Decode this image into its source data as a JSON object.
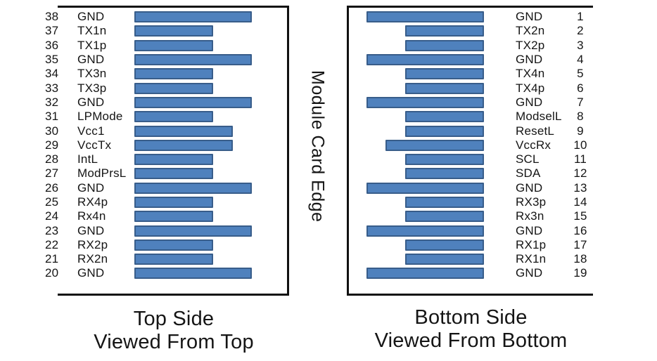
{
  "center_label": "Module Card Edge",
  "colors": {
    "bar_fill": "#4F81BD",
    "bar_border": "#385D8A",
    "box_border": "#111111",
    "text": "#151515"
  },
  "left_panel": {
    "caption": [
      "Top Side",
      "Viewed From Top"
    ],
    "pins": [
      {
        "num": "38",
        "label": "GND",
        "type": "gnd"
      },
      {
        "num": "37",
        "label": "TX1n",
        "type": "sig"
      },
      {
        "num": "36",
        "label": "TX1p",
        "type": "sig"
      },
      {
        "num": "35",
        "label": "GND",
        "type": "gnd"
      },
      {
        "num": "34",
        "label": "TX3n",
        "type": "sig"
      },
      {
        "num": "33",
        "label": "TX3p",
        "type": "sig"
      },
      {
        "num": "32",
        "label": "GND",
        "type": "gnd"
      },
      {
        "num": "31",
        "label": "LPMode",
        "type": "sig"
      },
      {
        "num": "30",
        "label": "Vcc1",
        "type": "vcc"
      },
      {
        "num": "29",
        "label": "VccTx",
        "type": "vcc"
      },
      {
        "num": "28",
        "label": "IntL",
        "type": "sig"
      },
      {
        "num": "27",
        "label": "ModPrsL",
        "type": "sig"
      },
      {
        "num": "26",
        "label": "GND",
        "type": "gnd"
      },
      {
        "num": "25",
        "label": "RX4p",
        "type": "sig"
      },
      {
        "num": "24",
        "label": "Rx4n",
        "type": "sig"
      },
      {
        "num": "23",
        "label": "GND",
        "type": "gnd"
      },
      {
        "num": "22",
        "label": "RX2p",
        "type": "sig"
      },
      {
        "num": "21",
        "label": "RX2n",
        "type": "sig"
      },
      {
        "num": "20",
        "label": "GND",
        "type": "gnd"
      }
    ]
  },
  "right_panel": {
    "caption": [
      "Bottom Side",
      "Viewed From Bottom"
    ],
    "pins": [
      {
        "num": "1",
        "label": "GND",
        "type": "gnd"
      },
      {
        "num": "2",
        "label": "TX2n",
        "type": "sig"
      },
      {
        "num": "3",
        "label": "TX2p",
        "type": "sig"
      },
      {
        "num": "4",
        "label": "GND",
        "type": "gnd"
      },
      {
        "num": "5",
        "label": "TX4n",
        "type": "sig"
      },
      {
        "num": "6",
        "label": "TX4p",
        "type": "sig"
      },
      {
        "num": "7",
        "label": "GND",
        "type": "gnd"
      },
      {
        "num": "8",
        "label": "ModselL",
        "type": "sig"
      },
      {
        "num": "9",
        "label": "ResetL",
        "type": "sig"
      },
      {
        "num": "10",
        "label": "VccRx",
        "type": "vcc"
      },
      {
        "num": "11",
        "label": "SCL",
        "type": "sig"
      },
      {
        "num": "12",
        "label": "SDA",
        "type": "sig"
      },
      {
        "num": "13",
        "label": "GND",
        "type": "gnd"
      },
      {
        "num": "14",
        "label": "RX3p",
        "type": "sig"
      },
      {
        "num": "15",
        "label": "Rx3n",
        "type": "sig"
      },
      {
        "num": "16",
        "label": "GND",
        "type": "gnd"
      },
      {
        "num": "17",
        "label": "RX1p",
        "type": "sig"
      },
      {
        "num": "18",
        "label": "RX1n",
        "type": "sig"
      },
      {
        "num": "19",
        "label": "GND",
        "type": "gnd"
      }
    ]
  }
}
